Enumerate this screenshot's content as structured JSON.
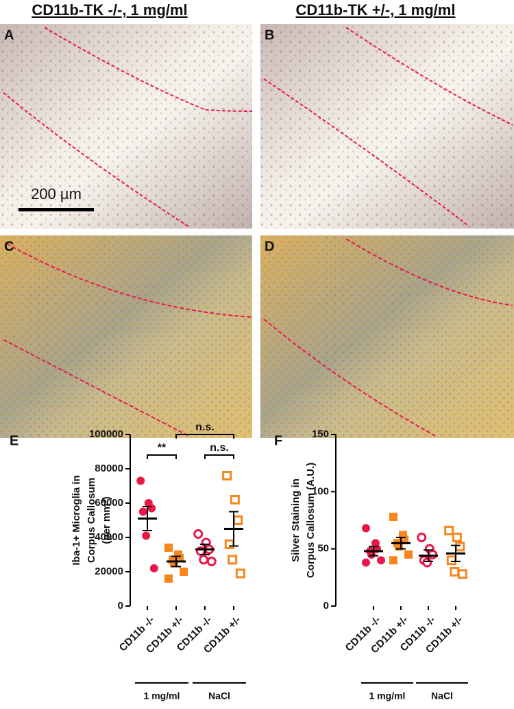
{
  "columns": [
    "CD11b-TK -/-, 1 mg/ml",
    "CD11b-TK +/-, 1 mg/ml"
  ],
  "panels": [
    "A",
    "B",
    "C",
    "D"
  ],
  "scale_bar": "200 µm",
  "chart_data": [
    {
      "type": "scatter",
      "panel": "E",
      "ylabel": [
        "Iba-1+ Microglia in",
        "Corpus Callosum",
        "(per mm³)"
      ],
      "categories": [
        "CD11b -/-",
        "CD11b +/-",
        "CD11b -/-",
        "CD11b +/-"
      ],
      "groups": [
        {
          "label": "1 mg/ml",
          "span": 2
        },
        {
          "label": "NaCl",
          "span": 2
        }
      ],
      "colors": [
        "#e8194a",
        "#f7861f",
        "#e8194a",
        "#f7861f"
      ],
      "markers": [
        "circle",
        "square",
        "circle",
        "square"
      ],
      "filled": [
        true,
        true,
        false,
        false
      ],
      "points": [
        [
          73000,
          60000,
          57000,
          55000,
          41000,
          22000
        ],
        [
          34000,
          30000,
          28000,
          27000,
          25000,
          20000,
          16000
        ],
        [
          42000,
          37000,
          33000,
          32000,
          27000,
          26000
        ],
        [
          76000,
          62000,
          50000,
          36000,
          27000,
          19000
        ]
      ],
      "means": [
        51000,
        26000,
        33000,
        45000
      ],
      "sems": [
        7000,
        3000,
        3000,
        10000
      ],
      "ylim": [
        0,
        100000
      ],
      "yticks": [
        0,
        20000,
        40000,
        60000,
        80000,
        100000
      ],
      "annotations": [
        {
          "label": "**",
          "from": 0,
          "to": 1,
          "y": 88000
        },
        {
          "label": "n.s.",
          "from": 1,
          "to": 3,
          "y": 100000
        },
        {
          "label": "n.s.",
          "from": 2,
          "to": 3,
          "y": 88000
        }
      ]
    },
    {
      "type": "scatter",
      "panel": "F",
      "ylabel": [
        "Silver Staining in",
        "Corpus Callosum (A.U.)"
      ],
      "categories": [
        "CD11b -/-",
        "CD11b +/-",
        "CD11b -/-",
        "CD11b +/-"
      ],
      "groups": [
        {
          "label": "1 mg/ml",
          "span": 2
        },
        {
          "label": "NaCl",
          "span": 2
        }
      ],
      "colors": [
        "#e8194a",
        "#f7861f",
        "#e8194a",
        "#f7861f"
      ],
      "markers": [
        "circle",
        "square",
        "circle",
        "square"
      ],
      "filled": [
        true,
        true,
        false,
        false
      ],
      "points": [
        [
          68,
          55,
          50,
          48,
          45,
          40,
          38
        ],
        [
          78,
          62,
          58,
          55,
          52,
          45,
          40
        ],
        [
          60,
          50,
          45,
          40,
          38
        ],
        [
          66,
          60,
          52,
          40,
          30,
          28
        ]
      ],
      "means": [
        48,
        55,
        44,
        46
      ],
      "sems": [
        4,
        5,
        5,
        7
      ],
      "ylim": [
        0,
        150
      ],
      "yticks": [
        0,
        50,
        100,
        150
      ],
      "annotations": []
    }
  ]
}
